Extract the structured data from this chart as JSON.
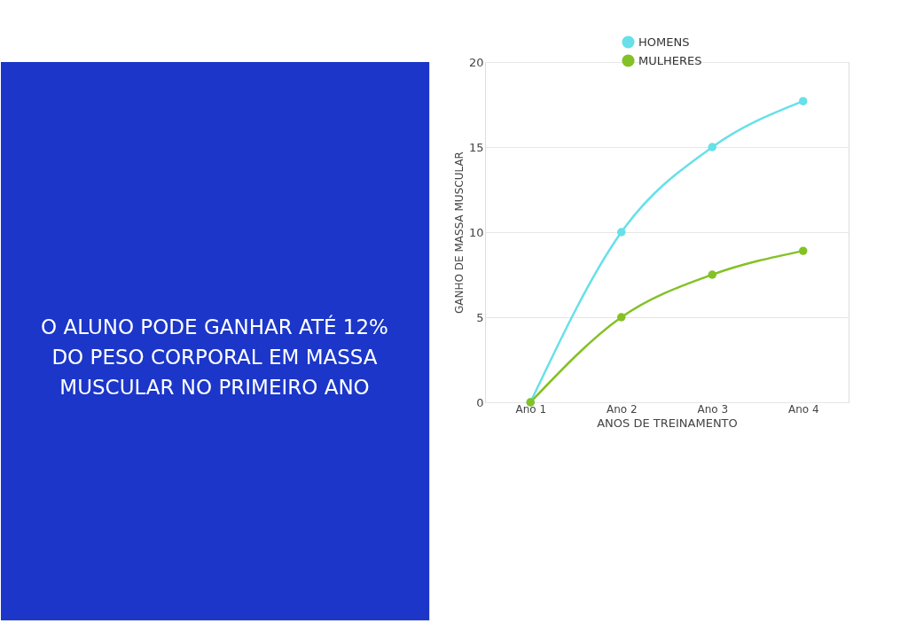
{
  "chart_data": {
    "type": "line",
    "annotations": [
      "O ALUNO PODE GANHAR ATÉ 12% DO PESO CORPORAL EM MASSA MUSCULAR NO PRIMEIRO ANO"
    ],
    "xlabel": "ANOS DE TREINAMENTO",
    "ylabel": "GANHO DE MASSA MUSCULAR",
    "categories": [
      "Ano 1",
      "Ano 2",
      "Ano 3",
      "Ano 4"
    ],
    "series": [
      {
        "name": "HOMENS",
        "color": "#67e0e8",
        "values": [
          0,
          10,
          15,
          17.7
        ]
      },
      {
        "name": "MULHERES",
        "color": "#84c126",
        "values": [
          0,
          5,
          7.5,
          8.9
        ]
      }
    ],
    "ylim": [
      0,
      20
    ],
    "yticks": [
      0,
      5,
      10,
      15,
      20
    ],
    "grid": "y",
    "legend": "top",
    "marker": "circle",
    "line_style": "solid"
  }
}
